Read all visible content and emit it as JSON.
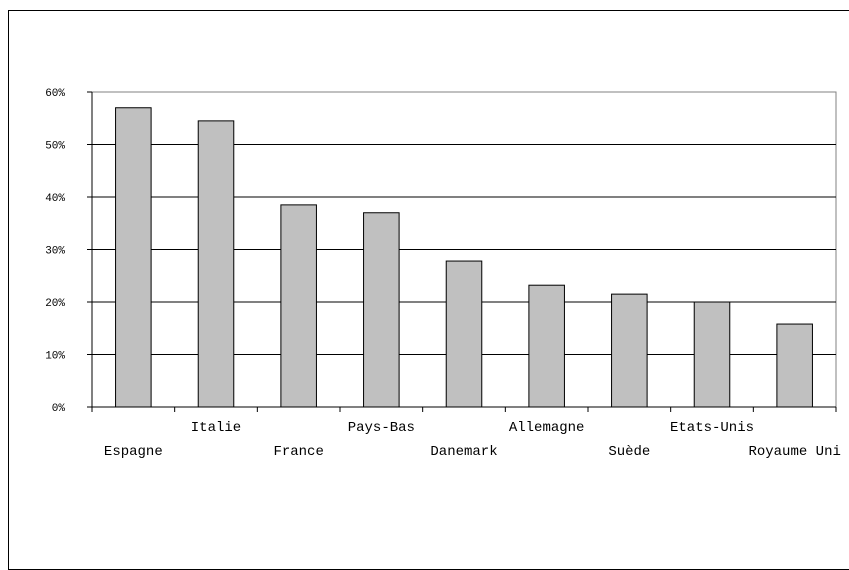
{
  "chart_data": {
    "type": "bar",
    "title": "",
    "xlabel": "",
    "ylabel": "",
    "ylim": [
      0,
      60
    ],
    "y_tick_step": 10,
    "y_tick_suffix": "%",
    "grid": true,
    "categories": [
      "Espagne",
      "Italie",
      "France",
      "Pays-Bas",
      "Danemark",
      "Allemagne",
      "Suède",
      "Etats-Unis",
      "Royaume Uni"
    ],
    "values": [
      57,
      54.5,
      38.5,
      37,
      27.8,
      23.2,
      21.5,
      20,
      15.8
    ],
    "colors": {
      "bar": "#c0c0c0",
      "bar_stroke": "#000000",
      "grid": "#000000",
      "background": "#ffffff"
    }
  }
}
